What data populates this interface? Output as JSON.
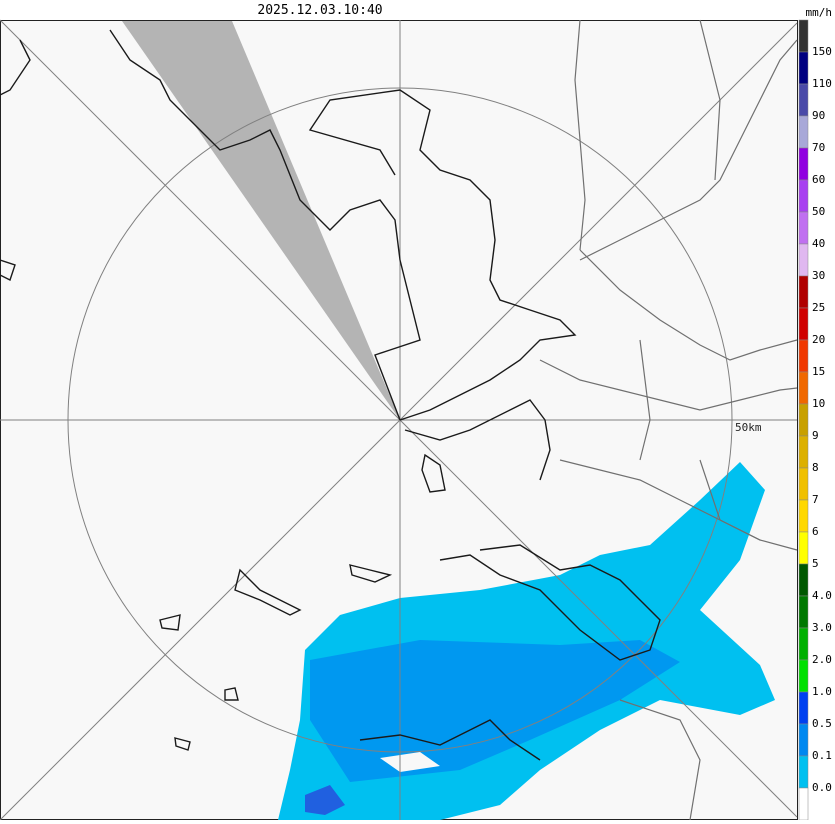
{
  "header": {
    "timestamp": "2025.12.03.10:40",
    "unit": "mm/h"
  },
  "map": {
    "range_label": "50km"
  },
  "legend": {
    "colors": [
      "#333333",
      "#000080",
      "#4a4aa8",
      "#a8a8d8",
      "#9000e0",
      "#a840f0",
      "#c070f0",
      "#e0b8f0",
      "#b00000",
      "#d00000",
      "#f03800",
      "#f06800",
      "#c8a000",
      "#dcb000",
      "#f0c000",
      "#ffd800",
      "#ffff00",
      "#005800",
      "#007800",
      "#00b000",
      "#00e000",
      "#0040f0",
      "#0088f0",
      "#00c0f0",
      "#ffffff"
    ],
    "labels": [
      "150",
      "110",
      "90",
      "70",
      "60",
      "50",
      "40",
      "30",
      "25",
      "20",
      "15",
      "10",
      "9",
      "8",
      "7",
      "6",
      "5",
      "4.0",
      "3.0",
      "2.0",
      "1.0",
      "0.5",
      "0.1",
      "0.0"
    ]
  }
}
